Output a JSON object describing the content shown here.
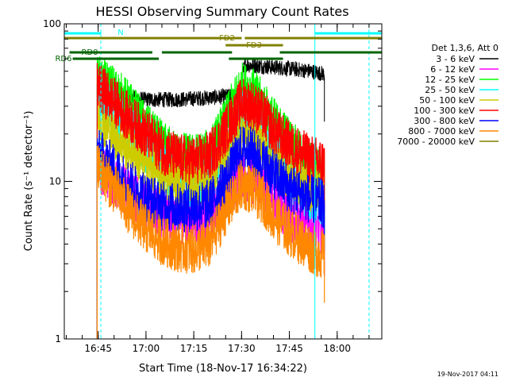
{
  "chart_data": {
    "type": "line",
    "title": "HESSI Observing Summary Count Rates",
    "xlabel": "Start Time (18-Nov-17 16:34:22)",
    "ylabel": "Count Rate (s⁻¹ detector⁻¹)",
    "yscale": "log",
    "ylim": [
      1,
      100
    ],
    "xlim": [
      "16:34:22",
      "18:14:00"
    ],
    "x_ticks": [
      "16:45",
      "17:00",
      "17:15",
      "17:30",
      "17:45",
      "18:00"
    ],
    "y_ticks": [
      "1",
      "10",
      "100"
    ],
    "legend_title": "Det 1,3,6, Att 0",
    "legend_position": "right",
    "series": [
      {
        "name": "3 - 6 keV",
        "color": "#000000",
        "x": [
          "16:44:40",
          "16:47:00",
          "16:50:00",
          "16:55:00",
          "17:00:00",
          "17:10:00",
          "17:20:00",
          "17:29:00",
          "17:31:00",
          "17:40:00",
          "17:45:00",
          "17:52:00",
          "17:56:00"
        ],
        "y": [
          40,
          38,
          36,
          34,
          33,
          33,
          34,
          35,
          55,
          53,
          52,
          50,
          48
        ]
      },
      {
        "name": "6 - 12 keV",
        "color": "#ff00ff",
        "x": [
          "16:44:40",
          "16:46:00",
          "16:50:00",
          "16:55:00",
          "17:00:00",
          "17:05:00",
          "17:10:00",
          "17:15:00",
          "17:20:00",
          "17:25:00",
          "17:30:00",
          "17:33:00",
          "17:37:00",
          "17:40:00",
          "17:45:00",
          "17:50:00",
          "17:53:00",
          "17:56:00"
        ],
        "y": [
          12,
          11.5,
          10,
          8.5,
          7,
          6.2,
          5.8,
          5.7,
          6.0,
          8.0,
          11,
          10.5,
          9,
          7.5,
          6.0,
          5.2,
          5.0,
          5.0
        ]
      },
      {
        "name": "12 - 25 keV",
        "color": "#00ff00",
        "x": [
          "16:44:40",
          "16:46:00",
          "16:50:00",
          "16:55:00",
          "17:00:00",
          "17:05:00",
          "17:10:00",
          "17:15:00",
          "17:20:00",
          "17:25:00",
          "17:30:00",
          "17:33:00",
          "17:37:00",
          "17:40:00",
          "17:45:00",
          "17:50:00",
          "17:53:00",
          "17:56:00"
        ],
        "y": [
          44,
          43,
          38,
          30,
          22,
          17,
          14.5,
          14,
          15,
          24,
          40,
          38,
          30,
          24,
          18,
          13,
          12,
          11
        ]
      },
      {
        "name": "25 - 50 keV",
        "color": "#00ffff",
        "x": [
          "16:44:40",
          "16:46:00",
          "16:50:00",
          "16:55:00",
          "17:00:00",
          "17:05:00",
          "17:10:00",
          "17:15:00",
          "17:20:00",
          "17:25:00",
          "17:30:00",
          "17:33:00",
          "17:37:00",
          "17:40:00",
          "17:45:00",
          "17:50:00",
          "17:53:00",
          "17:56:00"
        ],
        "y": [
          35,
          33,
          28,
          21,
          16,
          12.5,
          10,
          9.5,
          10.5,
          16,
          26,
          25,
          20,
          15,
          11,
          8.5,
          8.0,
          7.5
        ]
      },
      {
        "name": "50 - 100 keV",
        "color": "#cccc00",
        "x": [
          "16:44:40",
          "16:46:00",
          "16:50:00",
          "16:55:00",
          "17:00:00",
          "17:05:00",
          "17:10:00",
          "17:15:00",
          "17:20:00",
          "17:25:00",
          "17:30:00",
          "17:33:00",
          "17:37:00",
          "17:40:00",
          "17:45:00",
          "17:50:00",
          "17:53:00",
          "17:56:00"
        ],
        "y": [
          25,
          24,
          20,
          16,
          13,
          11,
          10,
          9.8,
          10.5,
          14,
          21,
          20,
          17,
          14,
          11,
          9.5,
          9.0,
          8.5
        ]
      },
      {
        "name": "100 - 300 keV",
        "color": "#ff0000",
        "x": [
          "16:44:40",
          "16:46:00",
          "16:50:00",
          "16:55:00",
          "17:00:00",
          "17:05:00",
          "17:10:00",
          "17:15:00",
          "17:20:00",
          "17:25:00",
          "17:30:00",
          "17:33:00",
          "17:37:00",
          "17:40:00",
          "17:45:00",
          "17:50:00",
          "17:53:00",
          "17:56:00"
        ],
        "y": [
          40,
          38,
          32,
          25,
          20,
          16,
          14,
          13.5,
          14.5,
          21,
          32,
          31,
          26,
          21,
          17,
          14.5,
          13.5,
          13
        ]
      },
      {
        "name": "300 - 800 keV",
        "color": "#0000ff",
        "x": [
          "16:44:40",
          "16:46:00",
          "16:50:00",
          "16:55:00",
          "17:00:00",
          "17:05:00",
          "17:10:00",
          "17:15:00",
          "17:20:00",
          "17:25:00",
          "17:30:00",
          "17:33:00",
          "17:37:00",
          "17:40:00",
          "17:45:00",
          "17:50:00",
          "17:53:00",
          "17:56:00"
        ],
        "y": [
          15,
          14.5,
          12,
          9.5,
          8,
          7,
          6.8,
          6.8,
          7.2,
          10,
          16,
          15.5,
          13,
          11,
          9,
          8,
          7.5,
          7.2
        ]
      },
      {
        "name": "800 - 7000 keV",
        "color": "#ff8800",
        "x": [
          "16:44:40",
          "16:46:00",
          "16:50:00",
          "16:55:00",
          "17:00:00",
          "17:05:00",
          "17:10:00",
          "17:15:00",
          "17:20:00",
          "17:25:00",
          "17:30:00",
          "17:33:00",
          "17:37:00",
          "17:40:00",
          "17:45:00",
          "17:50:00",
          "17:53:00",
          "17:56:00"
        ],
        "y": [
          12,
          11.5,
          9,
          6.5,
          5,
          4.2,
          3.8,
          3.7,
          4.0,
          6.5,
          9.5,
          9.0,
          7.5,
          6.0,
          4.8,
          4.0,
          3.6,
          3.4
        ]
      },
      {
        "name": "7000 - 20000 keV",
        "color": "#808000",
        "x": [],
        "y": []
      }
    ],
    "flags": [
      {
        "label": "N",
        "color": "#00ffff",
        "segments": [
          [
            "16:34:22",
            "16:46:00"
          ],
          [
            "17:53:00",
            "18:14:00"
          ]
        ]
      },
      {
        "label": "FD2",
        "color": "#808000",
        "segments": [
          [
            "16:34:22",
            "17:30:00"
          ],
          [
            "17:31:00",
            "18:14:00"
          ]
        ]
      },
      {
        "label": "FD3",
        "color": "#808000",
        "segments": [
          [
            "17:25:00",
            "17:43:00"
          ]
        ]
      },
      {
        "label": "RD0",
        "color": "#006400",
        "segments": [
          [
            "16:36:00",
            "17:02:00"
          ],
          [
            "17:05:00",
            "17:27:00"
          ],
          [
            "17:42:00",
            "18:14:00"
          ]
        ]
      },
      {
        "label": "RD6",
        "color": "#006400",
        "segments": [
          [
            "16:37:00",
            "17:04:00"
          ],
          [
            "17:26:00",
            "17:43:00"
          ]
        ]
      }
    ],
    "vertical_lines": [
      {
        "x": "16:34:22",
        "color": "#00ffff",
        "style": "solid"
      },
      {
        "x": "16:45:50",
        "color": "#00ffff",
        "style": "dashed"
      },
      {
        "x": "17:53:00",
        "color": "#00ffff",
        "style": "solid"
      },
      {
        "x": "18:10:00",
        "color": "#00ffff",
        "style": "dashed"
      }
    ],
    "footer_text": "19-Nov-2017 04:11"
  }
}
